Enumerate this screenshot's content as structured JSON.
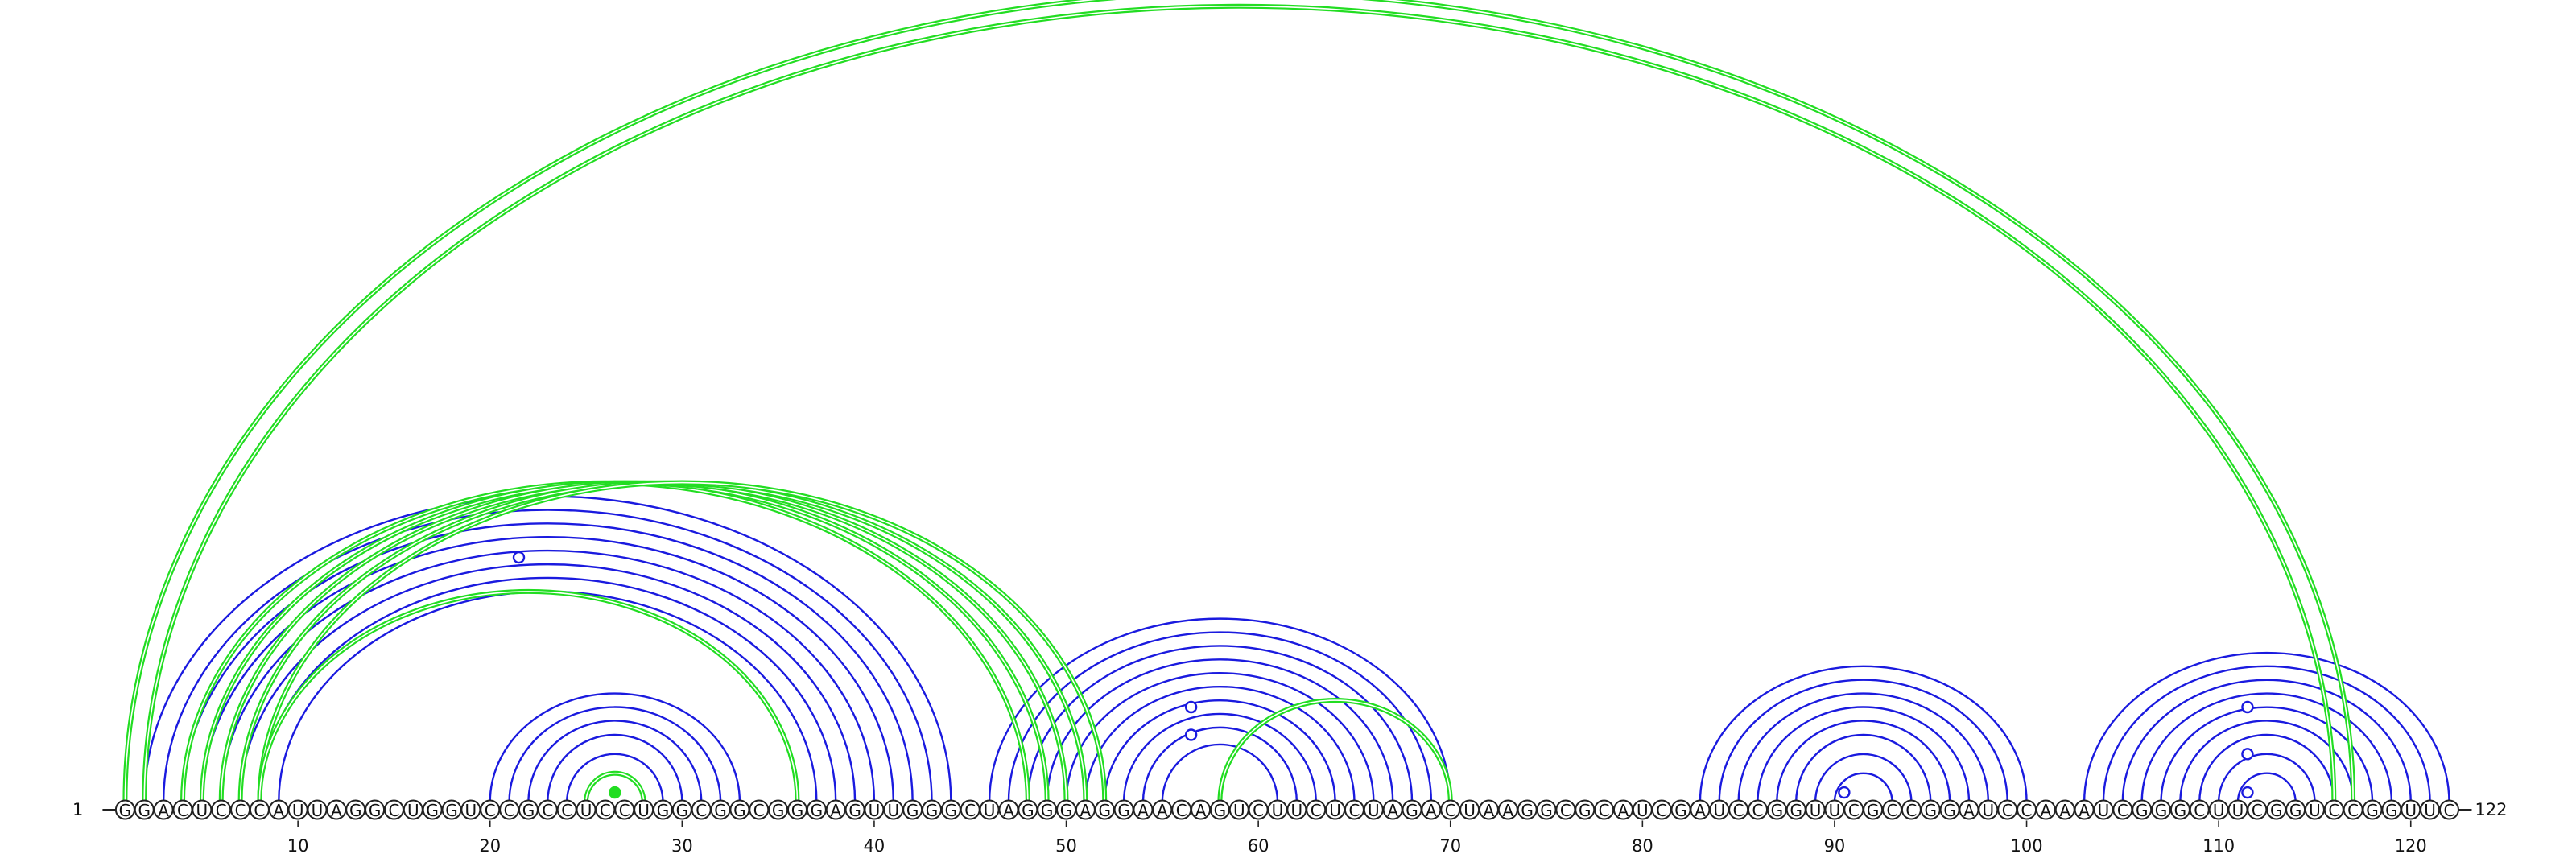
{
  "sequence": "GGACUCCCAUUAGGCUGGUCCGCCUCCUGGCGGCGGGAGUUGGGCUAGGGAGGAACAGUCUUCUCUAGACUAAGGCGCAUCGAUCCGGUUCGCCGGAUCCAAAUCGGGCUUCGGUCCGGUUC",
  "start_label": "1",
  "end_label": "122",
  "ticks": [
    10,
    20,
    30,
    40,
    50,
    60,
    70,
    80,
    90,
    100,
    110,
    120
  ],
  "colors": {
    "blue": "#1a1adf",
    "green": "#22dd22"
  },
  "blue_helices": [
    {
      "pairs": [
        [
          2,
          44
        ],
        [
          3,
          43
        ],
        [
          4,
          42
        ],
        [
          5,
          41
        ],
        [
          6,
          40
        ],
        [
          7,
          39
        ],
        [
          8,
          38
        ],
        [
          9,
          37
        ]
      ]
    },
    {
      "pairs": [
        [
          20,
          33
        ],
        [
          21,
          32
        ],
        [
          22,
          31
        ],
        [
          23,
          30
        ],
        [
          24,
          29
        ],
        [
          25,
          28
        ]
      ]
    },
    {
      "pairs": [
        [
          46,
          70
        ],
        [
          47,
          69
        ],
        [
          48,
          68
        ],
        [
          49,
          67
        ],
        [
          50,
          66
        ],
        [
          51,
          65
        ],
        [
          52,
          64
        ],
        [
          53,
          63
        ],
        [
          54,
          62
        ],
        [
          55,
          61
        ]
      ]
    },
    {
      "pairs": [
        [
          83,
          100
        ],
        [
          84,
          99
        ],
        [
          85,
          98
        ],
        [
          86,
          97
        ],
        [
          87,
          96
        ],
        [
          88,
          95
        ],
        [
          89,
          94
        ],
        [
          90,
          93
        ]
      ]
    },
    {
      "pairs": [
        [
          103,
          122
        ],
        [
          104,
          121
        ],
        [
          105,
          120
        ],
        [
          106,
          119
        ],
        [
          107,
          118
        ],
        [
          108,
          117
        ],
        [
          109,
          116
        ],
        [
          110,
          115
        ],
        [
          111,
          114
        ]
      ]
    }
  ],
  "green_helices": [
    {
      "pairs": [
        [
          1,
          117
        ],
        [
          2,
          116
        ]
      ],
      "style": "double"
    },
    {
      "pairs": [
        [
          4,
          48
        ],
        [
          5,
          49
        ],
        [
          6,
          50
        ],
        [
          7,
          51
        ],
        [
          8,
          52
        ]
      ],
      "style": "double"
    },
    {
      "pairs": [
        [
          8,
          36
        ]
      ],
      "style": "double"
    },
    {
      "pairs": [
        [
          58,
          70
        ]
      ],
      "style": "double"
    },
    {
      "pairs": [
        [
          25,
          28
        ]
      ],
      "style": "double"
    }
  ],
  "markers": [
    {
      "position": 21.5,
      "height_ref": [
        5,
        38
      ],
      "color": "blue",
      "filled": false
    },
    {
      "position": 56.5,
      "height_ref": [
        51,
        62
      ],
      "color": "blue",
      "filled": false
    },
    {
      "position": 56.5,
      "height_ref": [
        53,
        60
      ],
      "color": "blue",
      "filled": false
    },
    {
      "position": 90.5,
      "height_ref": [
        90,
        91
      ],
      "color": "blue",
      "filled": false
    },
    {
      "position": 26.5,
      "height_ref": [
        26,
        27
      ],
      "color": "green",
      "filled": true
    },
    {
      "position": 111.5,
      "height_ref": [
        106,
        117
      ],
      "color": "blue",
      "filled": false
    },
    {
      "position": 111.5,
      "height_ref": [
        109,
        114
      ],
      "color": "blue",
      "filled": false
    },
    {
      "position": 111.5,
      "height_ref": [
        111,
        112
      ],
      "color": "blue",
      "filled": false
    }
  ]
}
